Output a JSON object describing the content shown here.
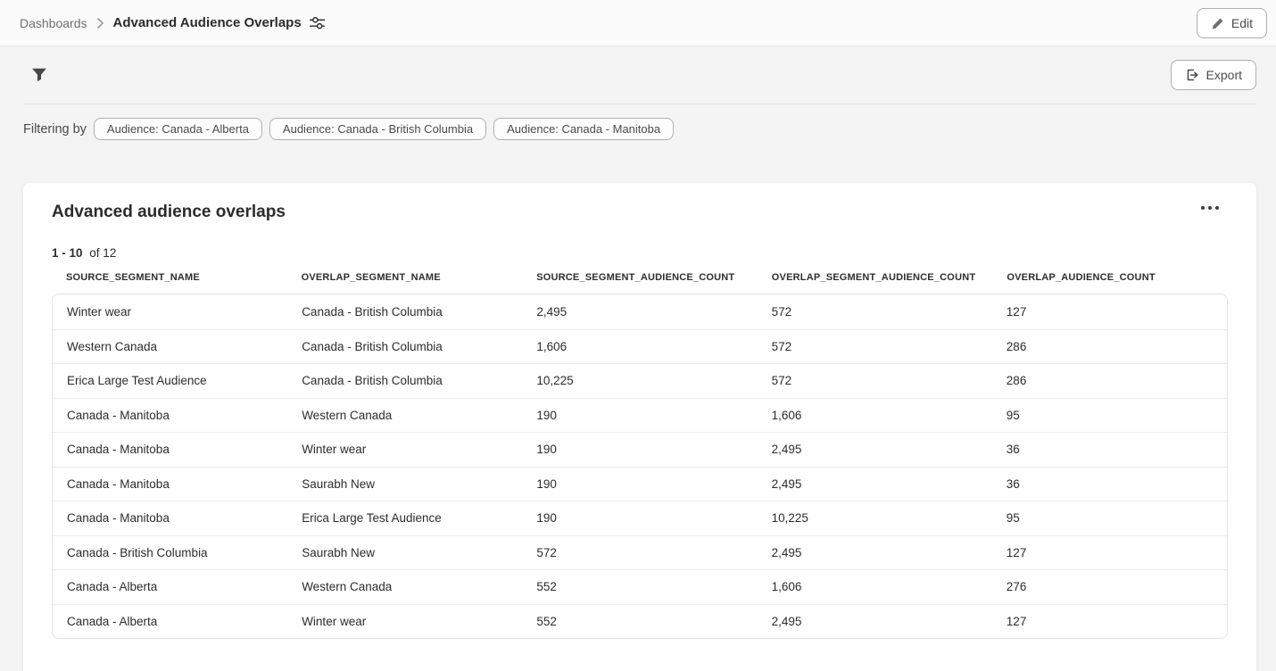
{
  "breadcrumb": {
    "parent_label": "Dashboards",
    "current_label": "Advanced Audience Overlaps"
  },
  "actions": {
    "edit_label": "Edit",
    "export_label": "Export"
  },
  "filter_bar": {
    "label": "Filtering by",
    "chips": [
      "Audience: Canada - Alberta",
      "Audience: Canada - British Columbia",
      "Audience: Canada - Manitoba"
    ]
  },
  "widget": {
    "title": "Advanced audience overlaps",
    "pagination_range": "1 - 10",
    "pagination_total": "of 12"
  },
  "icons": {
    "breadcrumb_settings": "sliders-icon",
    "edit": "pencil-icon",
    "filter": "funnel-icon",
    "export": "export-icon",
    "menu": "ellipsis-icon"
  },
  "chart_data": {
    "type": "table",
    "columns": [
      "SOURCE_SEGMENT_NAME",
      "OVERLAP_SEGMENT_NAME",
      "SOURCE_SEGMENT_AUDIENCE_COUNT",
      "OVERLAP_SEGMENT_AUDIENCE_COUNT",
      "OVERLAP_AUDIENCE_COUNT"
    ],
    "rows": [
      [
        "Winter wear",
        "Canada - British Columbia",
        "2,495",
        "572",
        "127"
      ],
      [
        "Western Canada",
        "Canada - British Columbia",
        "1,606",
        "572",
        "286"
      ],
      [
        "Erica Large Test Audience",
        "Canada - British Columbia",
        "10,225",
        "572",
        "286"
      ],
      [
        "Canada - Manitoba",
        "Western Canada",
        "190",
        "1,606",
        "95"
      ],
      [
        "Canada - Manitoba",
        "Winter wear",
        "190",
        "2,495",
        "36"
      ],
      [
        "Canada - Manitoba",
        "Saurabh New",
        "190",
        "2,495",
        "36"
      ],
      [
        "Canada - Manitoba",
        "Erica Large Test Audience",
        "190",
        "10,225",
        "95"
      ],
      [
        "Canada - British Columbia",
        "Saurabh New",
        "572",
        "2,495",
        "127"
      ],
      [
        "Canada - Alberta",
        "Western Canada",
        "552",
        "1,606",
        "276"
      ],
      [
        "Canada - Alberta",
        "Winter wear",
        "552",
        "2,495",
        "127"
      ]
    ]
  },
  "colors": {
    "page_background": "#f4f4f4",
    "topbar_background": "#fbfbfb",
    "card_background": "#ffffff",
    "border": "#e3e3e3",
    "text_primary": "#2c2c2c",
    "text_secondary": "#6e6e6e"
  }
}
